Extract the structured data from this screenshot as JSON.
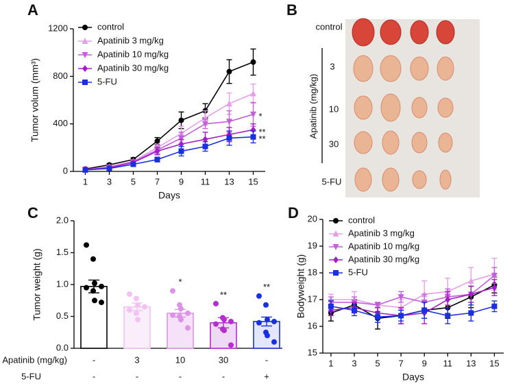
{
  "chart_data": [
    {
      "type": "line",
      "panel_label": "A",
      "xlabel": "Days",
      "ylabel": "Tumor volum (mm³)",
      "x": [
        1,
        3,
        5,
        7,
        9,
        11,
        13,
        15
      ],
      "xlim": [
        0,
        16
      ],
      "xticks": [
        1,
        3,
        5,
        7,
        9,
        11,
        13,
        15
      ],
      "ylim": [
        0,
        1200
      ],
      "yticks": [
        0,
        400,
        800,
        1200
      ],
      "legend": "upper left",
      "series": [
        {
          "name": "control",
          "color": "#000000",
          "marker": "circle",
          "values": [
            20,
            55,
            100,
            255,
            430,
            510,
            840,
            920
          ],
          "errors": [
            5,
            10,
            15,
            30,
            70,
            60,
            100,
            110
          ]
        },
        {
          "name": "Apatinib 3 mg/kg",
          "color": "#e69ee8",
          "marker": "triangle-up",
          "values": [
            15,
            40,
            85,
            200,
            320,
            450,
            570,
            655
          ],
          "errors": [
            5,
            8,
            12,
            30,
            60,
            60,
            90,
            80
          ]
        },
        {
          "name": "Apatinib 10 mg/kg",
          "color": "#c45fdc",
          "marker": "triangle-down",
          "values": [
            15,
            35,
            80,
            180,
            280,
            400,
            420,
            480
          ],
          "errors": [
            5,
            8,
            10,
            30,
            50,
            40,
            90,
            100
          ],
          "significance": "*"
        },
        {
          "name": "Apatinib 30 mg/kg",
          "color": "#a11fc4",
          "marker": "diamond",
          "values": [
            15,
            30,
            75,
            170,
            230,
            270,
            310,
            350
          ],
          "errors": [
            5,
            5,
            10,
            30,
            40,
            60,
            60,
            50
          ],
          "significance": "**"
        },
        {
          "name": "5-FU",
          "color": "#1a2fe0",
          "marker": "square",
          "values": [
            12,
            25,
            60,
            100,
            170,
            210,
            280,
            290
          ],
          "errors": [
            3,
            5,
            8,
            20,
            40,
            40,
            60,
            50
          ],
          "significance": "**"
        }
      ]
    },
    {
      "type": "bar",
      "panel_label": "C",
      "ylabel": "Tumor weight (g)",
      "category_rows": [
        {
          "name": "Apatinib (mg/kg)",
          "labels": [
            "-",
            "3",
            "10",
            "30",
            "-"
          ]
        },
        {
          "name": "5-FU",
          "labels": [
            "-",
            "-",
            "-",
            "-",
            "+"
          ]
        }
      ],
      "values": [
        0.97,
        0.65,
        0.55,
        0.4,
        0.42
      ],
      "errors": [
        0.1,
        0.06,
        0.06,
        0.08,
        0.07
      ],
      "colors": [
        "#000000",
        "#f2c2f2",
        "#dc94e6",
        "#b52fd0",
        "#1a2fe0"
      ],
      "fill_colors": [
        "#ffffff",
        "#fbeefb",
        "#f5e2f8",
        "#efd9f5",
        "#e3e6fc"
      ],
      "points": [
        [
          1.62,
          1.4,
          1.02,
          0.97,
          0.95,
          0.9,
          0.75,
          0.72
        ],
        [
          0.85,
          0.78,
          0.68,
          0.65,
          0.6,
          0.55,
          0.45
        ],
        [
          0.9,
          0.68,
          0.62,
          0.55,
          0.52,
          0.5,
          0.45,
          0.32
        ],
        [
          0.7,
          0.48,
          0.45,
          0.42,
          0.38,
          0.3,
          0.28,
          0.05
        ],
        [
          0.82,
          0.68,
          0.45,
          0.42,
          0.4,
          0.25,
          0.2,
          0.1
        ]
      ],
      "significance": [
        null,
        null,
        "*",
        "**",
        "**"
      ],
      "ylim": [
        0,
        2
      ],
      "yticks": [
        {
          "value": 0,
          "label": "0.0"
        },
        0.5,
        {
          "value": 1,
          "label": "1.0"
        },
        1.5,
        {
          "value": 2,
          "label": "2.0"
        }
      ]
    },
    {
      "type": "line",
      "panel_label": "D",
      "xlabel": "Days",
      "ylabel": "Bodyweight (g)",
      "x": [
        1,
        3,
        5,
        7,
        9,
        11,
        13,
        15
      ],
      "xlim": [
        0.3,
        15.8
      ],
      "xticks": [
        1,
        3,
        5,
        7,
        9,
        11,
        13,
        15
      ],
      "ylim": [
        15,
        20
      ],
      "yticks": [
        15,
        16,
        17,
        18,
        19,
        20
      ],
      "legend": "upper left",
      "series": [
        {
          "name": "control",
          "color": "#000000",
          "marker": "circle",
          "values": [
            16.5,
            16.8,
            16.3,
            16.4,
            16.6,
            16.7,
            17.1,
            17.55
          ],
          "errors": [
            0.3,
            0.2,
            0.4,
            0.3,
            0.3,
            0.4,
            0.4,
            0.3
          ]
        },
        {
          "name": "Apatinib 3 mg/kg",
          "color": "#e69ee8",
          "marker": "triangle-up",
          "values": [
            17.0,
            17.0,
            16.8,
            16.7,
            17.2,
            17.3,
            17.7,
            17.95
          ],
          "errors": [
            0.2,
            0.3,
            0.1,
            0.3,
            0.5,
            0.5,
            0.5,
            0.6
          ]
        },
        {
          "name": "Apatinib 10 mg/kg",
          "color": "#c45fdc",
          "marker": "triangle-down",
          "values": [
            16.9,
            16.9,
            16.8,
            17.1,
            16.9,
            17.1,
            17.2,
            17.9
          ],
          "errors": [
            0.2,
            0.2,
            0.1,
            0.2,
            0.3,
            0.3,
            0.3,
            0.3
          ]
        },
        {
          "name": "Apatinib 30 mg/kg",
          "color": "#a11fc4",
          "marker": "diamond",
          "values": [
            16.6,
            16.7,
            16.5,
            16.4,
            16.5,
            17.0,
            17.2,
            17.45
          ],
          "errors": [
            0.2,
            0.2,
            0.2,
            0.3,
            0.4,
            0.3,
            0.3,
            0.3
          ]
        },
        {
          "name": "5-FU",
          "color": "#1a2fe0",
          "marker": "square",
          "values": [
            16.75,
            16.6,
            16.35,
            16.4,
            16.6,
            16.4,
            16.5,
            16.75
          ],
          "errors": [
            0.2,
            0.2,
            0.2,
            0.2,
            0.3,
            0.3,
            0.3,
            0.2
          ]
        }
      ]
    }
  ],
  "photo_panel": {
    "panel_label": "B",
    "row_labels": [
      "control",
      "3",
      "10",
      "30",
      "5-FU"
    ],
    "group_label": "Apatinib (mg/kg)"
  }
}
